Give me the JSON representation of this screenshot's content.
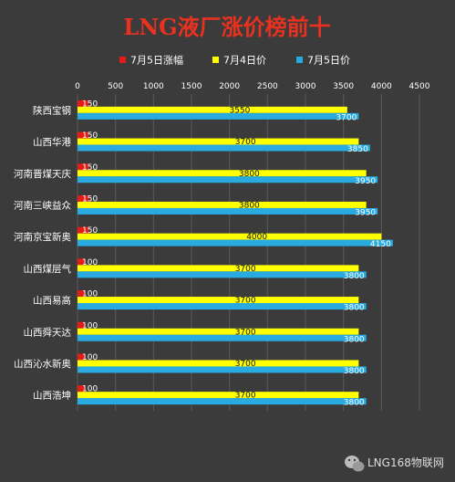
{
  "colors": {
    "background": "#3b3b3b",
    "title": "#e8321f",
    "text": "#ffffff",
    "label_dark": "#111111",
    "rise": "#e41b17",
    "jul4": "#ffff00",
    "jul5": "#29abe2",
    "grid": "#5a5a5a"
  },
  "watermark": {
    "icon": "wechat-icon",
    "text": "LNG168物联网"
  },
  "chart_data": {
    "type": "bar",
    "orientation": "horizontal",
    "title": "LNG液厂涨价榜前十",
    "xlabel": "",
    "ylabel": "",
    "xlim": [
      0,
      4500
    ],
    "xticks": [
      0,
      500,
      1000,
      1500,
      2000,
      2500,
      3000,
      3500,
      4000,
      4500
    ],
    "legend_position": "top",
    "grid": true,
    "categories": [
      "陕西宝钢",
      "山西华港",
      "河南晋煤天庆",
      "河南三峡益众",
      "河南京宝新奥",
      "山西煤层气",
      "山西易高",
      "山西舜天达",
      "山西沁水新奥",
      "山西浩坤"
    ],
    "series": [
      {
        "name": "7月5日涨幅",
        "values": [
          150,
          150,
          150,
          150,
          150,
          100,
          100,
          100,
          100,
          100
        ]
      },
      {
        "name": "7月4日价",
        "values": [
          3550,
          3700,
          3800,
          3800,
          4000,
          3700,
          3700,
          3700,
          3700,
          3700
        ]
      },
      {
        "name": "7月5日价",
        "values": [
          3700,
          3850,
          3950,
          3950,
          4150,
          3800,
          3800,
          3800,
          3800,
          3800
        ]
      }
    ]
  }
}
